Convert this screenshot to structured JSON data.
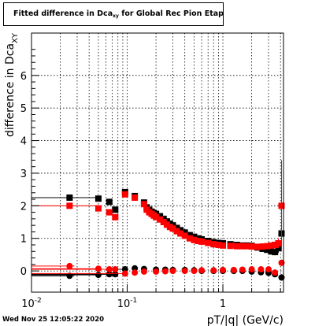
{
  "header": {
    "title_main": "Fitted difference in Dca",
    "title_sub": "xy",
    "title_tail": " for Global Rec Pion EtapT"
  },
  "footer": {
    "timestamp": "Wed Nov 25 12:05:22 2020"
  },
  "chart_data": {
    "type": "scatter",
    "title": "Fitted difference in Dcaxy for Global Rec Pion EtapT",
    "xlabel": "pT/|q| (GeV/c)",
    "ylabel_main": "difference in Dca",
    "ylabel_sub": "XY",
    "xscale": "log",
    "xlim": [
      0.01,
      4.3
    ],
    "ylim": [
      -0.65,
      7.3
    ],
    "grid": true,
    "x_ticks": [
      {
        "value": 0.01,
        "base": "10",
        "exp": "-2"
      },
      {
        "value": 0.1,
        "base": "10",
        "exp": "-1"
      },
      {
        "value": 1,
        "base": "1",
        "exp": ""
      }
    ],
    "y_ticks": [
      0,
      1,
      2,
      3,
      4,
      5,
      6
    ],
    "colors": {
      "black": "#000000",
      "red": "#ff0000"
    },
    "series": [
      {
        "marker": "square",
        "color": "#000000",
        "x": [
          0.025,
          0.05,
          0.065,
          0.075,
          0.095,
          0.12,
          0.15,
          0.16,
          0.17,
          0.18,
          0.19,
          0.2,
          0.22,
          0.24,
          0.26,
          0.28,
          0.3,
          0.33,
          0.36,
          0.4,
          0.45,
          0.5,
          0.55,
          0.6,
          0.7,
          0.8,
          0.9,
          1.0,
          1.2,
          1.4,
          1.6,
          1.8,
          2.0,
          2.3,
          2.6,
          2.9,
          3.2,
          3.5,
          3.8,
          4.1
        ],
        "y": [
          2.25,
          2.22,
          2.12,
          1.88,
          2.42,
          2.3,
          2.1,
          1.95,
          1.88,
          1.82,
          1.78,
          1.75,
          1.68,
          1.6,
          1.52,
          1.45,
          1.4,
          1.32,
          1.25,
          1.18,
          1.1,
          1.05,
          1.0,
          0.97,
          0.92,
          0.88,
          0.86,
          0.85,
          0.82,
          0.8,
          0.78,
          0.78,
          0.77,
          0.72,
          0.68,
          0.65,
          0.6,
          0.58,
          0.7,
          1.15
        ],
        "err_x": [
          0.0,
          0.0,
          0.0,
          0.0,
          0.0,
          0.0,
          0.0,
          0.0,
          0.0,
          0.0,
          0.0,
          0.0,
          0.0,
          0.0,
          0.0,
          0.0,
          0.0,
          0.0,
          0.0,
          0.0,
          0.0,
          0.0,
          0.0,
          0.0,
          0.0,
          0.0,
          0.0,
          0.0,
          0.0,
          0.0,
          0.0,
          0.0,
          0.0,
          0.0,
          0.0,
          0.0,
          0.0,
          0.0,
          0.0,
          0.0
        ],
        "err_y": [
          0.02,
          0.02,
          0.02,
          0.03,
          0.03,
          0.02,
          0.02,
          0.02,
          0.02,
          0.02,
          0.02,
          0.02,
          0.02,
          0.02,
          0.02,
          0.02,
          0.02,
          0.02,
          0.02,
          0.02,
          0.02,
          0.02,
          0.02,
          0.02,
          0.02,
          0.02,
          0.03,
          0.03,
          0.03,
          0.03,
          0.04,
          0.04,
          0.05,
          0.05,
          0.06,
          0.07,
          0.08,
          0.1,
          0.15,
          0.3
        ]
      },
      {
        "marker": "square",
        "color": "#ff0000",
        "x": [
          0.025,
          0.05,
          0.065,
          0.075,
          0.095,
          0.12,
          0.15,
          0.16,
          0.17,
          0.18,
          0.19,
          0.2,
          0.22,
          0.24,
          0.26,
          0.28,
          0.3,
          0.33,
          0.36,
          0.4,
          0.45,
          0.5,
          0.55,
          0.6,
          0.7,
          0.8,
          0.9,
          1.0,
          1.2,
          1.4,
          1.6,
          1.8,
          2.0,
          2.3,
          2.6,
          2.9,
          3.2,
          3.5,
          3.8,
          4.1
        ],
        "y": [
          2.0,
          1.92,
          1.8,
          1.65,
          2.35,
          2.25,
          2.05,
          1.88,
          1.8,
          1.75,
          1.7,
          1.65,
          1.58,
          1.5,
          1.42,
          1.35,
          1.3,
          1.22,
          1.15,
          1.08,
          1.0,
          0.95,
          0.92,
          0.9,
          0.86,
          0.82,
          0.8,
          0.78,
          0.77,
          0.76,
          0.76,
          0.76,
          0.75,
          0.74,
          0.75,
          0.76,
          0.78,
          0.8,
          0.85,
          2.0
        ],
        "err_x": [
          0.0,
          0.0,
          0.0,
          0.0,
          0.0,
          0.0,
          0.0,
          0.0,
          0.0,
          0.0,
          0.0,
          0.0,
          0.0,
          0.0,
          0.0,
          0.0,
          0.0,
          0.0,
          0.0,
          0.0,
          0.0,
          0.0,
          0.0,
          0.0,
          0.0,
          0.0,
          0.0,
          0.0,
          0.0,
          0.0,
          0.0,
          0.0,
          0.0,
          0.0,
          0.0,
          0.0,
          0.0,
          0.0,
          0.0,
          0.0
        ],
        "err_y": [
          0.02,
          0.02,
          0.02,
          0.03,
          0.03,
          0.02,
          0.02,
          0.02,
          0.02,
          0.02,
          0.02,
          0.02,
          0.02,
          0.02,
          0.02,
          0.02,
          0.02,
          0.02,
          0.02,
          0.02,
          0.02,
          0.02,
          0.02,
          0.02,
          0.02,
          0.02,
          0.03,
          0.03,
          0.03,
          0.03,
          0.04,
          0.04,
          0.05,
          0.05,
          0.06,
          0.07,
          0.08,
          0.1,
          0.15,
          1.4
        ]
      },
      {
        "marker": "circle",
        "color": "#000000",
        "x": [
          0.025,
          0.05,
          0.065,
          0.075,
          0.095,
          0.12,
          0.15,
          0.2,
          0.25,
          0.3,
          0.4,
          0.5,
          0.6,
          0.8,
          1.0,
          1.3,
          1.6,
          2.0,
          2.5,
          3.0,
          3.5,
          4.1
        ],
        "y": [
          -0.15,
          -0.12,
          -0.1,
          -0.1,
          0.05,
          0.08,
          0.06,
          0.04,
          0.04,
          0.03,
          0.03,
          0.02,
          0.0,
          0.0,
          0.0,
          0.0,
          0.0,
          -0.02,
          -0.04,
          -0.06,
          -0.1,
          -0.2
        ],
        "err_x": [
          0.003,
          0.002,
          0.002,
          0.002,
          0.002,
          0.0,
          0.0,
          0.0,
          0.0,
          0.0,
          0.0,
          0.0,
          0.0,
          0.0,
          0.0,
          0.0,
          0.0,
          0.0,
          0.0,
          0.0,
          0.0,
          0.0
        ],
        "err_y": [
          0.02,
          0.02,
          0.02,
          0.02,
          0.02,
          0.02,
          0.02,
          0.02,
          0.02,
          0.02,
          0.02,
          0.02,
          0.02,
          0.02,
          0.02,
          0.02,
          0.03,
          0.03,
          0.04,
          0.05,
          0.06,
          0.1
        ]
      },
      {
        "marker": "circle",
        "color": "#ff0000",
        "x": [
          0.025,
          0.05,
          0.065,
          0.075,
          0.095,
          0.12,
          0.15,
          0.2,
          0.25,
          0.3,
          0.4,
          0.5,
          0.6,
          0.8,
          1.0,
          1.3,
          1.6,
          2.0,
          2.5,
          3.0,
          3.5,
          4.1
        ],
        "y": [
          0.15,
          0.07,
          0.05,
          0.05,
          -0.08,
          -0.05,
          -0.02,
          -0.02,
          -0.01,
          0.0,
          0.0,
          0.0,
          0.02,
          0.02,
          0.03,
          0.03,
          0.04,
          0.05,
          0.05,
          0.05,
          -0.05,
          0.25
        ],
        "err_x": [
          0.003,
          0.002,
          0.002,
          0.002,
          0.002,
          0.0,
          0.0,
          0.0,
          0.0,
          0.0,
          0.0,
          0.0,
          0.0,
          0.0,
          0.0,
          0.0,
          0.0,
          0.0,
          0.0,
          0.0,
          0.0,
          0.0
        ],
        "err_y": [
          0.02,
          0.02,
          0.02,
          0.02,
          0.02,
          0.02,
          0.02,
          0.02,
          0.02,
          0.02,
          0.02,
          0.02,
          0.02,
          0.02,
          0.02,
          0.02,
          0.03,
          0.03,
          0.04,
          0.05,
          0.06,
          0.1
        ]
      }
    ]
  }
}
